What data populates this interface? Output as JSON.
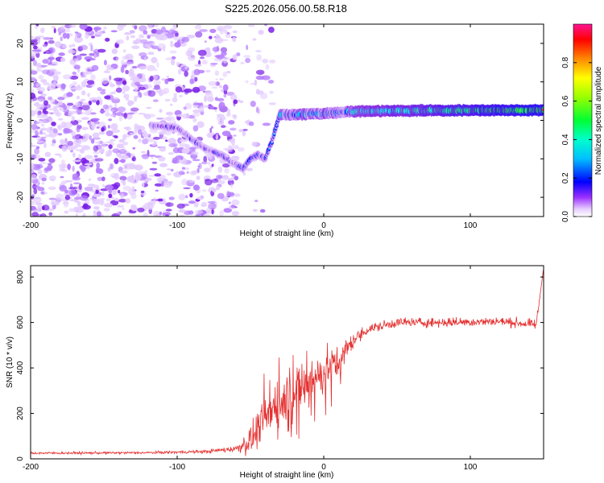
{
  "title": "S225.2026.056.00.58.R18",
  "colors": {
    "snr_line": "#e53030",
    "axis": "#000000",
    "colormap": [
      "#ffffff",
      "#d9b3ff",
      "#8a2be2",
      "#0000ff",
      "#00bfff",
      "#00ffff",
      "#00ff66",
      "#66ff00",
      "#ffff00",
      "#ff9900",
      "#ff0000",
      "#ff1493"
    ]
  },
  "chart_data": [
    {
      "type": "heatmap",
      "xlabel": "Height of straight line (km)",
      "ylabel": "Frequency (Hz)",
      "xlim": [
        -200,
        150
      ],
      "ylim": [
        -25,
        25
      ],
      "xticks": [
        -200,
        -100,
        0,
        100
      ],
      "yticks": [
        -20,
        -10,
        0,
        10,
        20
      ],
      "colorbar": {
        "label": "Normalized spectral amplitude",
        "range": [
          0,
          1
        ],
        "ticks": [
          0.0,
          0.2,
          0.4,
          0.6,
          0.8
        ]
      },
      "signal_track": {
        "x": [
          -110,
          -100,
          -90,
          -80,
          -70,
          -60,
          -55,
          -50,
          -45,
          -40,
          -35,
          -30,
          -20,
          0,
          20,
          50,
          100,
          150
        ],
        "freq": [
          -1.5,
          -2.0,
          -5.0,
          -7.5,
          -9.0,
          -11.5,
          -12.5,
          -10.0,
          -9.0,
          -10.0,
          -5.0,
          1.5,
          1.5,
          1.8,
          2.3,
          2.5,
          2.6,
          2.6
        ]
      }
    },
    {
      "type": "line",
      "xlabel": "Height of straight line (km)",
      "ylabel": "SNR (10 * v/v)",
      "xlim": [
        -200,
        150
      ],
      "ylim": [
        0,
        850
      ],
      "xticks": [
        -200,
        -100,
        0,
        100
      ],
      "yticks": [
        0,
        200,
        400,
        600,
        800
      ],
      "envelope": {
        "x": [
          -200,
          -120,
          -80,
          -60,
          -50,
          -40,
          -30,
          -20,
          -10,
          0,
          10,
          20,
          30,
          50,
          80,
          120,
          145,
          150
        ],
        "mean": [
          25,
          27,
          32,
          45,
          80,
          180,
          260,
          300,
          330,
          380,
          430,
          520,
          570,
          600,
          600,
          605,
          590,
          840
        ],
        "noise": [
          10,
          10,
          14,
          25,
          120,
          180,
          200,
          200,
          180,
          170,
          150,
          60,
          45,
          40,
          40,
          35,
          40,
          0
        ]
      }
    }
  ]
}
